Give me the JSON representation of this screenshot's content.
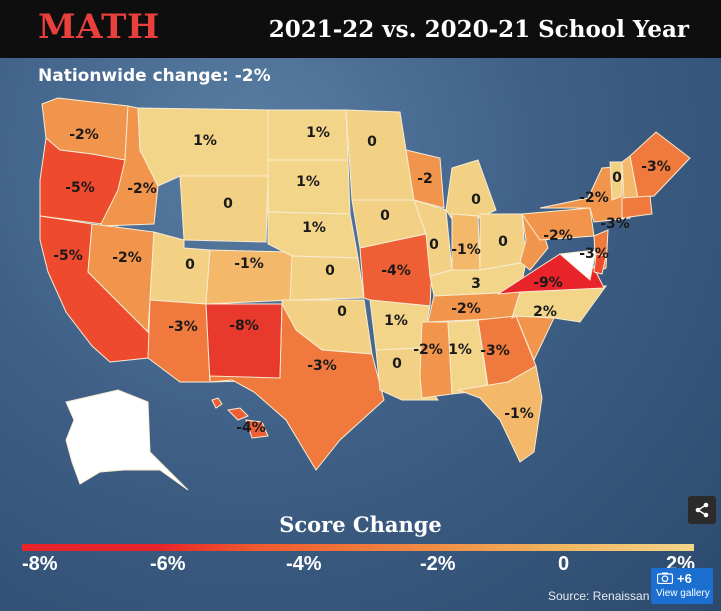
{
  "header": {
    "subject": "MATH",
    "period": "2021-22 vs. 2020-21 School Year",
    "nationwide": "Nationwide change: -2%"
  },
  "colors": {
    "subject_red": "#e8403c",
    "scale_minus_9": "#e8232a",
    "scale_minus_8": "#e8392c",
    "scale_minus_5": "#ee4a2e",
    "scale_minus_4": "#ef5f35",
    "scale_minus_3": "#f07a3e",
    "scale_minus_2": "#f0954b",
    "scale_minus_1": "#f3b869",
    "scale_zero": "#f3d184",
    "scale_positive": "#f3d58a",
    "no_data": "#ffffff"
  },
  "states": [
    {
      "id": "WA",
      "change": -2,
      "label": "-2%"
    },
    {
      "id": "OR",
      "change": -5,
      "label": "-5%"
    },
    {
      "id": "CA",
      "change": -5,
      "label": "-5%"
    },
    {
      "id": "ID",
      "change": -2,
      "label": "-2%"
    },
    {
      "id": "NV",
      "change": -2,
      "label": "-2%"
    },
    {
      "id": "MT",
      "change": 1,
      "label": "1%"
    },
    {
      "id": "WY",
      "change": 0,
      "label": "0"
    },
    {
      "id": "UT",
      "change": 0,
      "label": "0"
    },
    {
      "id": "AZ",
      "change": -3,
      "label": "-3%"
    },
    {
      "id": "CO",
      "change": -1,
      "label": "-1%"
    },
    {
      "id": "NM",
      "change": -8,
      "label": "-8%"
    },
    {
      "id": "ND",
      "change": 1,
      "label": "1%"
    },
    {
      "id": "SD",
      "change": 1,
      "label": "1%"
    },
    {
      "id": "NE",
      "change": 1,
      "label": "1%"
    },
    {
      "id": "KS",
      "change": 0,
      "label": "0"
    },
    {
      "id": "OK",
      "change": 0,
      "label": "0"
    },
    {
      "id": "TX",
      "change": -3,
      "label": "-3%"
    },
    {
      "id": "MN",
      "change": 0,
      "label": "0"
    },
    {
      "id": "IA",
      "change": 0,
      "label": "0"
    },
    {
      "id": "MO",
      "change": -4,
      "label": "-4%"
    },
    {
      "id": "AR",
      "change": 1,
      "label": "1%"
    },
    {
      "id": "LA",
      "change": 0,
      "label": "0"
    },
    {
      "id": "WI",
      "change": -2,
      "label": "-2"
    },
    {
      "id": "IL",
      "change": 0,
      "label": "0"
    },
    {
      "id": "MI",
      "change": 0,
      "label": "0"
    },
    {
      "id": "IN",
      "change": -1,
      "label": "-1%"
    },
    {
      "id": "OH",
      "change": 0,
      "label": "0"
    },
    {
      "id": "KY",
      "change": 3,
      "label": "3"
    },
    {
      "id": "TN",
      "change": -2,
      "label": "-2%"
    },
    {
      "id": "MS",
      "change": -2,
      "label": "-2%"
    },
    {
      "id": "AL",
      "change": 1,
      "label": "1%"
    },
    {
      "id": "GA",
      "change": -3,
      "label": "-3%"
    },
    {
      "id": "FL",
      "change": -1,
      "label": "-1%"
    },
    {
      "id": "SC",
      "change": -2,
      "label": ""
    },
    {
      "id": "NC",
      "change": 2,
      "label": "2%"
    },
    {
      "id": "VA",
      "change": -9,
      "label": "-9%"
    },
    {
      "id": "WV",
      "change": -2,
      "label": ""
    },
    {
      "id": "PA",
      "change": -2,
      "label": "-2%"
    },
    {
      "id": "NY",
      "change": -2,
      "label": "-2%"
    },
    {
      "id": "VT",
      "change": 0,
      "label": "0"
    },
    {
      "id": "NH",
      "change": -1,
      "label": ""
    },
    {
      "id": "ME",
      "change": -3,
      "label": "-3%"
    },
    {
      "id": "MA",
      "change": -3,
      "label": "-3%"
    },
    {
      "id": "NJ",
      "change": -3,
      "label": "-3%"
    },
    {
      "id": "DE",
      "change": -5,
      "label": ""
    },
    {
      "id": "MD",
      "change": null,
      "label": ""
    },
    {
      "id": "AK",
      "change": null,
      "label": ""
    },
    {
      "id": "HI",
      "change": -4,
      "label": "-4%"
    }
  ],
  "legend": {
    "title": "Score Change",
    "ticks": [
      "-8%",
      "-6%",
      "-4%",
      "-2%",
      "0",
      "2%"
    ],
    "range": [
      -8,
      2
    ]
  },
  "source": "Source: Renaissan",
  "gallery": {
    "count": "+6",
    "label": "View gallery",
    "icon": "camera-icon"
  },
  "share": {
    "icon": "share-icon"
  }
}
